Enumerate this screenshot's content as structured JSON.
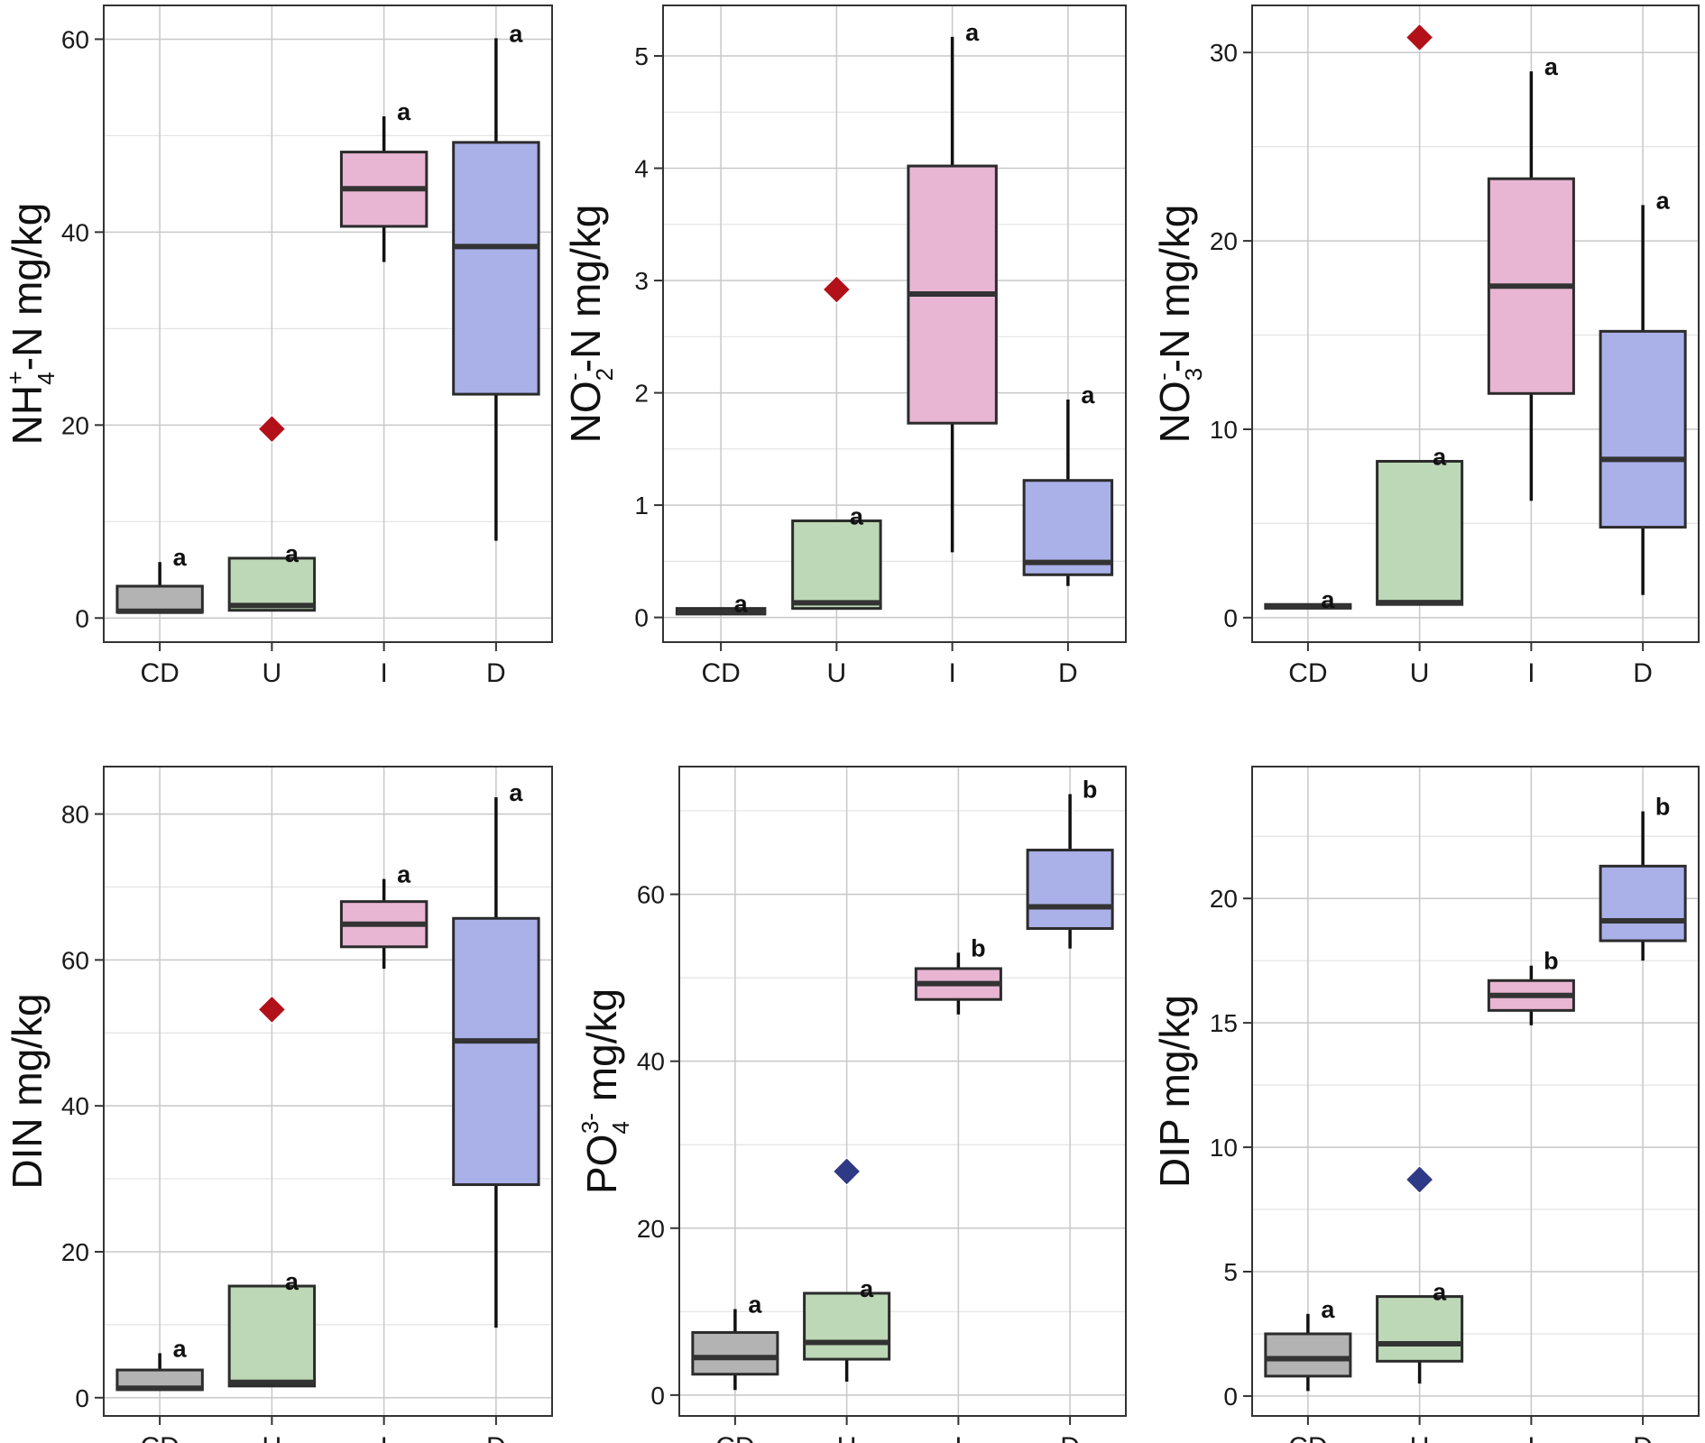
{
  "colors": {
    "CD": "#b3b3b3",
    "U": "#bdd8b7",
    "I": "#e8b6d2",
    "D": "#aab0e8",
    "outlier_red": "#b3111a",
    "outlier_blue": "#2f3a86",
    "box_edge": "#2b2b2b",
    "grid_major": "#c8c8c8",
    "grid_minor": "#e3e3e3"
  },
  "chart_data": [
    {
      "type": "box",
      "ylabel": {
        "base": "NH",
        "sub": "4",
        "sup": "+",
        "rest": "-N mg/kg"
      },
      "categories": [
        "CD",
        "U",
        "I",
        "D"
      ],
      "ylim": [
        -2.5,
        63.5
      ],
      "yticks": [
        0,
        20,
        40,
        60
      ],
      "yticklabels": [
        "0",
        "20",
        "40",
        "60"
      ],
      "minor_ticks": [
        10,
        30,
        50
      ],
      "boxes": [
        {
          "category": "CD",
          "q1": 0.6,
          "median": 0.7,
          "q3": 3.3,
          "whisker_low": 0.5,
          "whisker_high": 5.8,
          "sig": "a"
        },
        {
          "category": "U",
          "q1": 0.8,
          "median": 1.3,
          "q3": 6.2,
          "whisker_low": 0.8,
          "whisker_high": 6.2,
          "sig": "a"
        },
        {
          "category": "I",
          "q1": 40.6,
          "median": 44.5,
          "q3": 48.3,
          "whisker_low": 36.9,
          "whisker_high": 52.0,
          "sig": "a"
        },
        {
          "category": "D",
          "q1": 23.2,
          "median": 38.5,
          "q3": 49.3,
          "whisker_low": 8.0,
          "whisker_high": 60.1,
          "sig": "a"
        }
      ],
      "outliers": [
        {
          "category": "U",
          "value": 19.6,
          "color": "red"
        }
      ]
    },
    {
      "type": "box",
      "ylabel": {
        "base": "NO",
        "sub": "2",
        "sup": "-",
        "rest": "-N mg/kg"
      },
      "categories": [
        "CD",
        "U",
        "I",
        "D"
      ],
      "ylim": [
        -0.22,
        5.45
      ],
      "yticks": [
        0,
        1,
        2,
        3,
        4,
        5
      ],
      "yticklabels": [
        "0",
        "1",
        "2",
        "3",
        "4",
        "5"
      ],
      "minor_ticks": [
        0.5,
        1.5,
        2.5,
        3.5,
        4.5
      ],
      "boxes": [
        {
          "category": "CD",
          "q1": 0.03,
          "median": 0.05,
          "q3": 0.08,
          "whisker_low": 0.03,
          "whisker_high": 0.08,
          "sig": "a"
        },
        {
          "category": "U",
          "q1": 0.08,
          "median": 0.13,
          "q3": 0.86,
          "whisker_low": 0.08,
          "whisker_high": 0.86,
          "sig": "a"
        },
        {
          "category": "I",
          "q1": 1.73,
          "median": 2.88,
          "q3": 4.02,
          "whisker_low": 0.58,
          "whisker_high": 5.17,
          "sig": "a"
        },
        {
          "category": "D",
          "q1": 0.38,
          "median": 0.49,
          "q3": 1.22,
          "whisker_low": 0.28,
          "whisker_high": 1.94,
          "sig": "a"
        }
      ],
      "outliers": [
        {
          "category": "U",
          "value": 2.92,
          "color": "red"
        }
      ]
    },
    {
      "type": "box",
      "ylabel": {
        "base": "NO",
        "sub": "3",
        "sup": "-",
        "rest": "-N mg/kg"
      },
      "categories": [
        "CD",
        "U",
        "I",
        "D"
      ],
      "ylim": [
        -1.3,
        32.5
      ],
      "yticks": [
        0,
        10,
        20,
        30
      ],
      "yticklabels": [
        "0",
        "10",
        "20",
        "30"
      ],
      "minor_ticks": [
        5,
        15,
        25
      ],
      "boxes": [
        {
          "category": "CD",
          "q1": 0.5,
          "median": 0.6,
          "q3": 0.7,
          "whisker_low": 0.5,
          "whisker_high": 0.7,
          "sig": "a"
        },
        {
          "category": "U",
          "q1": 0.7,
          "median": 0.8,
          "q3": 8.3,
          "whisker_low": 0.7,
          "whisker_high": 8.3,
          "sig": "a"
        },
        {
          "category": "I",
          "q1": 11.9,
          "median": 17.6,
          "q3": 23.3,
          "whisker_low": 6.2,
          "whisker_high": 29.0,
          "sig": "a"
        },
        {
          "category": "D",
          "q1": 4.8,
          "median": 8.4,
          "q3": 15.2,
          "whisker_low": 1.2,
          "whisker_high": 21.9,
          "sig": "a"
        }
      ],
      "outliers": [
        {
          "category": "U",
          "value": 30.8,
          "color": "red"
        }
      ]
    },
    {
      "type": "box",
      "ylabel": {
        "base": "DIN mg/kg"
      },
      "categories": [
        "CD",
        "U",
        "I",
        "D"
      ],
      "ylim": [
        -2.5,
        86.5
      ],
      "yticks": [
        0,
        20,
        40,
        60,
        80
      ],
      "yticklabels": [
        "0",
        "20",
        "40",
        "60",
        "80"
      ],
      "minor_ticks": [
        10,
        30,
        50,
        70
      ],
      "boxes": [
        {
          "category": "CD",
          "q1": 1.1,
          "median": 1.3,
          "q3": 3.8,
          "whisker_low": 1.1,
          "whisker_high": 6.1,
          "sig": "a"
        },
        {
          "category": "U",
          "q1": 1.6,
          "median": 2.1,
          "q3": 15.3,
          "whisker_low": 1.6,
          "whisker_high": 15.3,
          "sig": "a"
        },
        {
          "category": "I",
          "q1": 61.8,
          "median": 64.9,
          "q3": 68.0,
          "whisker_low": 58.8,
          "whisker_high": 71.1,
          "sig": "a"
        },
        {
          "category": "D",
          "q1": 29.2,
          "median": 48.9,
          "q3": 65.7,
          "whisker_low": 9.6,
          "whisker_high": 82.3,
          "sig": "a"
        }
      ],
      "outliers": [
        {
          "category": "U",
          "value": 53.2,
          "color": "red"
        }
      ]
    },
    {
      "type": "box",
      "ylabel": {
        "base": "PO",
        "sub": "4",
        "sup": "3-",
        "rest": " mg/kg"
      },
      "categories": [
        "CD",
        "U",
        "I",
        "D"
      ],
      "ylim": [
        -2.5,
        75.3
      ],
      "yticks": [
        0,
        20,
        40,
        60
      ],
      "yticklabels": [
        "0",
        "20",
        "40",
        "60"
      ],
      "minor_ticks": [
        10,
        30,
        50,
        70
      ],
      "boxes": [
        {
          "category": "CD",
          "q1": 2.5,
          "median": 4.5,
          "q3": 7.5,
          "whisker_low": 0.6,
          "whisker_high": 10.3,
          "sig": "a"
        },
        {
          "category": "U",
          "q1": 4.3,
          "median": 6.3,
          "q3": 12.2,
          "whisker_low": 1.6,
          "whisker_high": 12.2,
          "sig": "a"
        },
        {
          "category": "I",
          "q1": 47.4,
          "median": 49.3,
          "q3": 51.1,
          "whisker_low": 45.6,
          "whisker_high": 53.0,
          "sig": "b"
        },
        {
          "category": "D",
          "q1": 55.9,
          "median": 58.5,
          "q3": 65.3,
          "whisker_low": 53.5,
          "whisker_high": 72.0,
          "sig": "b"
        }
      ],
      "outliers": [
        {
          "category": "U",
          "value": 26.8,
          "color": "blue"
        }
      ]
    },
    {
      "type": "box",
      "ylabel": {
        "base": "DIP mg/kg"
      },
      "categories": [
        "CD",
        "U",
        "I",
        "D"
      ],
      "ylim": [
        -0.8,
        25.3
      ],
      "yticks": [
        0,
        5,
        10,
        15,
        20
      ],
      "yticklabels": [
        "0",
        "5",
        "10",
        "15",
        "20"
      ],
      "minor_ticks": [
        2.5,
        7.5,
        12.5,
        17.5,
        22.5
      ],
      "boxes": [
        {
          "category": "CD",
          "q1": 0.8,
          "median": 1.5,
          "q3": 2.5,
          "whisker_low": 0.2,
          "whisker_high": 3.3,
          "sig": "a"
        },
        {
          "category": "U",
          "q1": 1.4,
          "median": 2.1,
          "q3": 4.0,
          "whisker_low": 0.5,
          "whisker_high": 4.0,
          "sig": "a"
        },
        {
          "category": "I",
          "q1": 15.5,
          "median": 16.1,
          "q3": 16.7,
          "whisker_low": 14.9,
          "whisker_high": 17.3,
          "sig": "b"
        },
        {
          "category": "D",
          "q1": 18.3,
          "median": 19.1,
          "q3": 21.3,
          "whisker_low": 17.5,
          "whisker_high": 23.5,
          "sig": "b"
        }
      ],
      "outliers": [
        {
          "category": "U",
          "value": 8.7,
          "color": "blue"
        }
      ]
    }
  ]
}
